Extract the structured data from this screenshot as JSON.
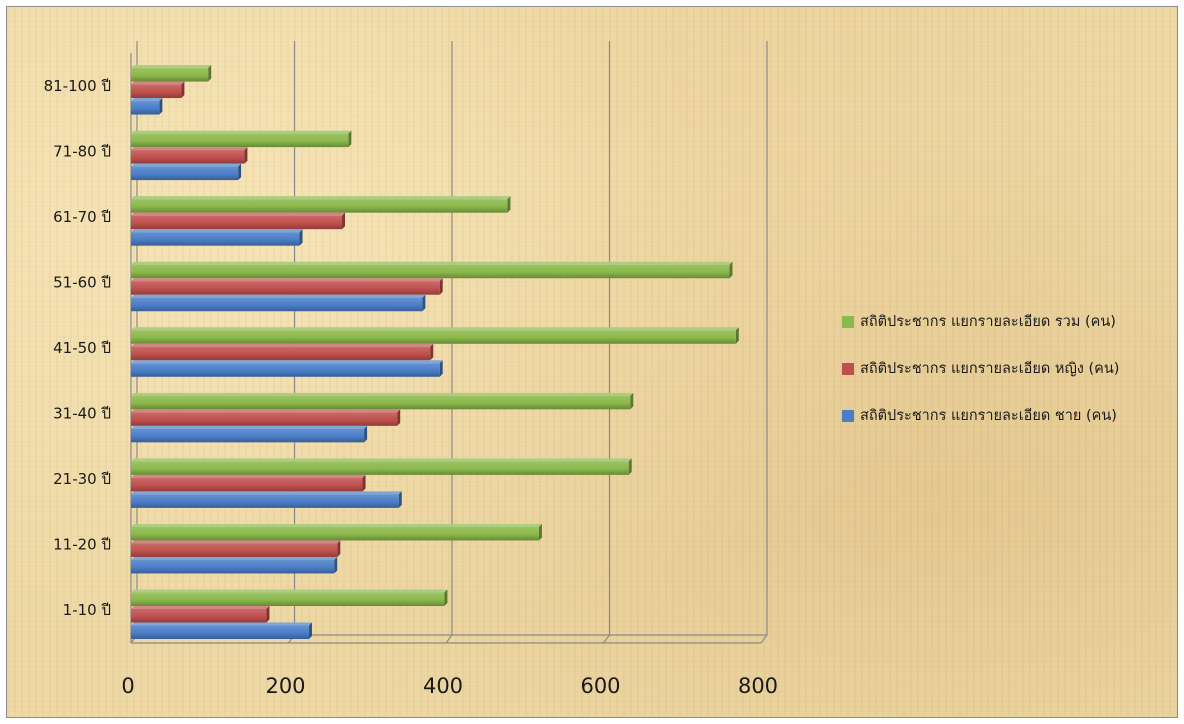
{
  "chart_data": {
    "type": "bar",
    "orientation": "horizontal",
    "categories": [
      "1-10 ปี",
      "11-20 ปี",
      "21-30 ปี",
      "31-40 ปี",
      "41-50 ปี",
      "51-60 ปี",
      "61-70 ปี",
      "71-80 ปี",
      "81-100 ปี"
    ],
    "series": [
      {
        "name": "สถิติประชากร แยกรายละเอียด ชาย (คน)",
        "color": "#4a7ec8",
        "values": [
          226,
          258,
          340,
          296,
          392,
          370,
          214,
          136,
          36
        ]
      },
      {
        "name": "สถิติประชากร แยกรายละเอียด หญิง (คน)",
        "color": "#c0504d",
        "values": [
          172,
          262,
          294,
          338,
          380,
          392,
          268,
          144,
          64
        ]
      },
      {
        "name": "สถิติประชากร แยกรายละเอียด รวม (คน)",
        "color": "#8ab84a",
        "values": [
          398,
          518,
          632,
          634,
          768,
          760,
          478,
          276,
          98
        ]
      }
    ],
    "legend_order": [
      2,
      1,
      0
    ],
    "xlim": [
      0,
      800
    ],
    "x_ticks": [
      "0",
      "200",
      "400",
      "600",
      "800"
    ],
    "grid": "vertical",
    "legend": "right"
  }
}
